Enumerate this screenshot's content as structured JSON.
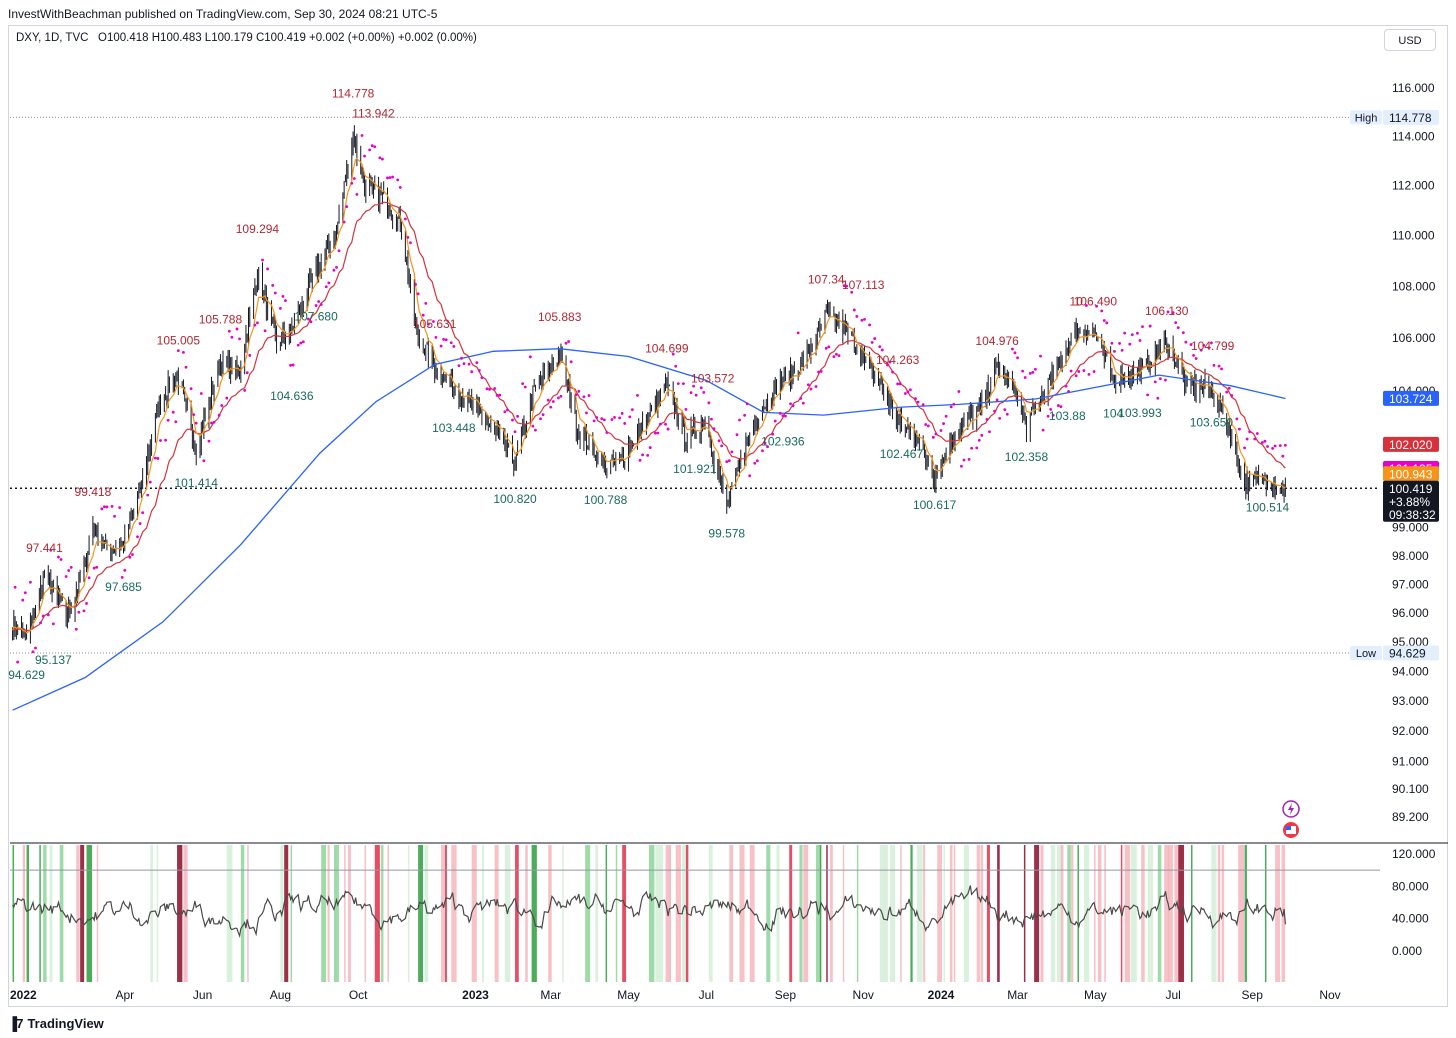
{
  "header": {
    "published": "InvestWithBeachman published on TradingView.com, Sep 30, 2024 08:21 UTC-5",
    "symbol": "DXY, 1D, TVC",
    "ohlc": "O100.418  H100.483  L100.179  C100.419  +0.002 (+0.00%)  +0.002 (0.00%)",
    "currency": "USD"
  },
  "footer": {
    "brand": "TradingView"
  },
  "colors": {
    "up_label": "#b22833",
    "down_label": "#1a6b5c",
    "sma200": "#2962ff",
    "ema_fast": "#f7931a",
    "ema_slow": "#d6323c",
    "psar": "#e600c8",
    "price": "#131722"
  },
  "chart_data": [
    {
      "type": "line",
      "title": "",
      "xlabel": "",
      "ylabel": "",
      "ylim": [
        87.8,
        117.2
      ],
      "y_scale": "log",
      "x_ticks": [
        "2022",
        "Apr",
        "Jun",
        "Aug",
        "Oct",
        "2023",
        "Mar",
        "May",
        "Jul",
        "Sep",
        "Nov",
        "2024",
        "Mar",
        "May",
        "Jul",
        "Sep",
        "Nov"
      ],
      "y_ticks": [
        "116.000",
        "114.000",
        "112.000",
        "110.000",
        "108.000",
        "106.000",
        "104.000",
        "102.000",
        "100.000",
        "99.000",
        "98.000",
        "97.000",
        "96.000",
        "95.000",
        "94.000",
        "93.000",
        "92.000",
        "91.000",
        "90.100",
        "89.200"
      ],
      "series": [
        {
          "name": "",
          "role": "price",
          "x": [
            "2022-01-03",
            "2022-01-14",
            "2022-01-28",
            "2022-02-15",
            "2022-02-28",
            "2022-03-07",
            "2022-03-18",
            "2022-03-31",
            "2022-04-14",
            "2022-04-28",
            "2022-05-12",
            "2022-05-27",
            "2022-06-15",
            "2022-06-30",
            "2022-07-14",
            "2022-07-29",
            "2022-08-10",
            "2022-08-29",
            "2022-09-14",
            "2022-09-27",
            "2022-10-06",
            "2022-10-21",
            "2022-11-04",
            "2022-11-15",
            "2022-11-30",
            "2022-12-15",
            "2022-12-29",
            "2023-01-18",
            "2023-02-01",
            "2023-02-15",
            "2023-03-08",
            "2023-03-22",
            "2023-04-13",
            "2023-04-26",
            "2023-05-10",
            "2023-05-31",
            "2023-06-15",
            "2023-06-30",
            "2023-07-17",
            "2023-07-31",
            "2023-08-10",
            "2023-08-25",
            "2023-09-12",
            "2023-09-28",
            "2023-10-03",
            "2023-10-20",
            "2023-11-03",
            "2023-11-15",
            "2023-11-28",
            "2023-12-13",
            "2023-12-27",
            "2024-01-11",
            "2024-01-31",
            "2024-02-14",
            "2024-02-29",
            "2024-03-08",
            "2024-03-28",
            "2024-04-16",
            "2024-04-30",
            "2024-05-15",
            "2024-05-31",
            "2024-06-11",
            "2024-06-26",
            "2024-07-12",
            "2024-07-31",
            "2024-08-15",
            "2024-08-26",
            "2024-09-13",
            "2024-09-27"
          ],
          "y": [
            95.7,
            95.1,
            97.3,
            95.9,
            97.5,
            99.1,
            98.2,
            98.4,
            100.5,
            103.6,
            104.6,
            101.8,
            105.1,
            104.7,
            108.5,
            105.8,
            106.3,
            108.6,
            110.2,
            114.1,
            111.9,
            111.5,
            110.4,
            106.3,
            104.9,
            104.1,
            103.5,
            102.4,
            101.3,
            103.9,
            105.4,
            102.6,
            101.2,
            101.5,
            102.6,
            104.2,
            102.2,
            102.9,
            99.7,
            101.9,
            103.1,
            104.2,
            104.9,
            106.2,
            107.0,
            106.2,
            105.0,
            104.3,
            102.8,
            102.3,
            100.8,
            102.4,
            103.3,
            104.9,
            103.9,
            102.7,
            104.5,
            106.3,
            106.2,
            104.4,
            104.7,
            105.0,
            105.9,
            104.2,
            104.1,
            102.5,
            100.6,
            100.8,
            100.4
          ]
        },
        {
          "name": "",
          "role": "sma200",
          "x": [
            "2022-01-03",
            "2022-03-01",
            "2022-05-01",
            "2022-07-01",
            "2022-09-01",
            "2022-10-15",
            "2022-11-30",
            "2023-01-15",
            "2023-03-08",
            "2023-05-01",
            "2023-07-01",
            "2023-08-15",
            "2023-10-01",
            "2023-12-01",
            "2024-01-15",
            "2024-03-15",
            "2024-06-20",
            "2024-08-15",
            "2024-09-27"
          ],
          "y": [
            92.7,
            93.8,
            95.7,
            98.4,
            101.7,
            103.6,
            105.0,
            105.5,
            105.6,
            105.3,
            104.4,
            103.2,
            103.1,
            103.4,
            103.5,
            103.7,
            104.6,
            104.2,
            103.72
          ]
        },
        {
          "name": "",
          "role": "ema_fast",
          "last": 100.943
        },
        {
          "name": "",
          "role": "ema_slow",
          "last": 102.02
        },
        {
          "name": "",
          "role": "psar",
          "last": 101.135
        }
      ],
      "high_line": {
        "label": "High",
        "value": 114.778
      },
      "low_line": {
        "label": "Low",
        "value": 94.629
      },
      "price_line": 100.419,
      "axis_badges": [
        {
          "text": "114.778",
          "value": 114.778,
          "bg": "#e3effd",
          "fg": "#131722"
        },
        {
          "text": "103.724",
          "value": 103.724,
          "bg": "#2962ff",
          "fg": "#ffffff"
        },
        {
          "text": "102.020",
          "value": 102.02,
          "bg": "#d6323c",
          "fg": "#ffffff"
        },
        {
          "text": "101.135",
          "value": 101.135,
          "bg": "#e600c8",
          "fg": "#ffffff"
        },
        {
          "text": "100.943",
          "value": 100.943,
          "bg": "#f7931a",
          "fg": "#ffffff"
        },
        {
          "text": "94.629",
          "value": 94.629,
          "bg": "#e3effd",
          "fg": "#131722"
        }
      ],
      "price_badge": {
        "lines": [
          "100.419",
          "+3.88%",
          "09:38:32"
        ],
        "value": 100.419
      },
      "annotations": [
        {
          "t": "114.778",
          "x": "2022-09-27",
          "y": 114.778,
          "kind": "high"
        },
        {
          "t": "113.942",
          "x": "2022-10-13",
          "y": 113.942,
          "kind": "high"
        },
        {
          "t": "109.294",
          "x": "2022-07-14",
          "y": 109.294,
          "kind": "high"
        },
        {
          "t": "105.788",
          "x": "2022-06-15",
          "y": 105.788,
          "kind": "high"
        },
        {
          "t": "105.005",
          "x": "2022-05-13",
          "y": 105.005,
          "kind": "high"
        },
        {
          "t": "99.418",
          "x": "2022-03-07",
          "y": 99.418,
          "kind": "high"
        },
        {
          "t": "97.441",
          "x": "2022-01-28",
          "y": 97.441,
          "kind": "high"
        },
        {
          "t": "105.631",
          "x": "2022-11-30",
          "y": 105.631,
          "kind": "high"
        },
        {
          "t": "105.883",
          "x": "2023-03-08",
          "y": 105.883,
          "kind": "high"
        },
        {
          "t": "104.699",
          "x": "2023-05-31",
          "y": 104.699,
          "kind": "high"
        },
        {
          "t": "103.572",
          "x": "2023-07-06",
          "y": 103.572,
          "kind": "high"
        },
        {
          "t": "107.34",
          "x": "2023-10-03",
          "y": 107.34,
          "kind": "high"
        },
        {
          "t": "107.113",
          "x": "2023-11-01",
          "y": 107.113,
          "kind": "high"
        },
        {
          "t": "104.263",
          "x": "2023-11-28",
          "y": 104.263,
          "kind": "high"
        },
        {
          "t": "104.976",
          "x": "2024-02-14",
          "y": 104.976,
          "kind": "high"
        },
        {
          "t": "10",
          "x": "2024-04-16",
          "y": 106.49,
          "kind": "high"
        },
        {
          "t": "106.490",
          "x": "2024-05-01",
          "y": 106.49,
          "kind": "high"
        },
        {
          "t": "106.130",
          "x": "2024-06-26",
          "y": 106.13,
          "kind": "high"
        },
        {
          "t": "104.799",
          "x": "2024-08-01",
          "y": 104.799,
          "kind": "high"
        },
        {
          "t": "94.629",
          "x": "2022-01-14",
          "y": 94.629,
          "kind": "low"
        },
        {
          "t": "95.137",
          "x": "2022-02-04",
          "y": 95.137,
          "kind": "low"
        },
        {
          "t": "97.685",
          "x": "2022-03-31",
          "y": 97.685,
          "kind": "low"
        },
        {
          "t": "101.414",
          "x": "2022-05-27",
          "y": 101.414,
          "kind": "low"
        },
        {
          "t": "104.636",
          "x": "2022-08-10",
          "y": 104.636,
          "kind": "low"
        },
        {
          "t": "107.680",
          "x": "2022-08-29",
          "y": 107.68,
          "kind": "low"
        },
        {
          "t": "103.448",
          "x": "2022-12-15",
          "y": 103.448,
          "kind": "low"
        },
        {
          "t": "100.820",
          "x": "2023-02-01",
          "y": 100.82,
          "kind": "low"
        },
        {
          "t": "100.788",
          "x": "2023-04-13",
          "y": 100.788,
          "kind": "low"
        },
        {
          "t": "101.921",
          "x": "2023-06-22",
          "y": 101.921,
          "kind": "low"
        },
        {
          "t": "99.578",
          "x": "2023-07-17",
          "y": 99.578,
          "kind": "low"
        },
        {
          "t": "102.936",
          "x": "2023-08-30",
          "y": 102.936,
          "kind": "low"
        },
        {
          "t": "102.467",
          "x": "2023-12-01",
          "y": 102.467,
          "kind": "low"
        },
        {
          "t": "100.617",
          "x": "2023-12-27",
          "y": 100.617,
          "kind": "low"
        },
        {
          "t": "102.358",
          "x": "2024-03-08",
          "y": 102.358,
          "kind": "low"
        },
        {
          "t": "103.88",
          "x": "2024-04-09",
          "y": 103.88,
          "kind": "low"
        },
        {
          "t": "104",
          "x": "2024-05-15",
          "y": 103.98,
          "kind": "low"
        },
        {
          "t": "103.993",
          "x": "2024-06-05",
          "y": 103.993,
          "kind": "low"
        },
        {
          "t": "103.650",
          "x": "2024-07-31",
          "y": 103.65,
          "kind": "low"
        },
        {
          "t": "100.514",
          "x": "2024-09-13",
          "y": 100.514,
          "kind": "low"
        }
      ]
    },
    {
      "type": "line",
      "title": "",
      "ylim": [
        -8,
        132
      ],
      "y_ticks": [
        "120.000",
        "80.000",
        "40.000",
        "0.000"
      ],
      "reference_lines": [
        100
      ],
      "series": [
        {
          "name": "",
          "role": "oscillator",
          "color": "#4a4a4a",
          "last": 33
        }
      ]
    }
  ]
}
